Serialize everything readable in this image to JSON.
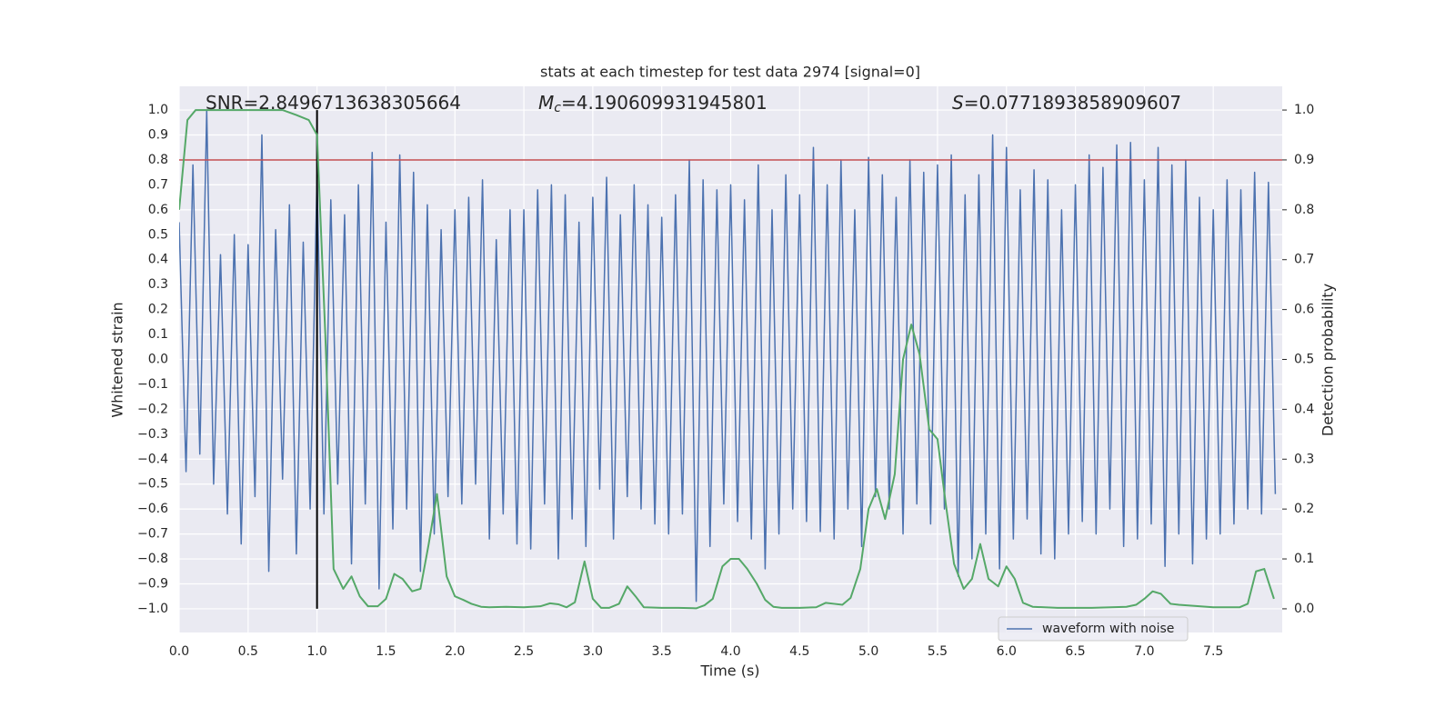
{
  "chart_data": {
    "type": "line",
    "title": "stats at each timestep for test data 2974 [signal=0]",
    "x_label": "Time (s)",
    "y_label": "Whitened strain",
    "y2_label": "Detection probability",
    "annotations": [
      {
        "text": "SNR=2.8496713638305664"
      },
      {
        "symbol": "M",
        "subscript": "c",
        "text": "=4.190609931945801"
      },
      {
        "symbol": "S",
        "text": "=0.0771893858909607"
      }
    ],
    "xlim": [
      0,
      8
    ],
    "ylim": [
      -1.095,
      1.095
    ],
    "y2lim": [
      -0.0475,
      1.0475
    ],
    "xticks": [
      {
        "value": 0,
        "label": "0.0"
      },
      {
        "value": 0.5,
        "label": "0.5"
      },
      {
        "value": 1,
        "label": "1.0"
      },
      {
        "value": 1.5,
        "label": "1.5"
      },
      {
        "value": 2,
        "label": "2.0"
      },
      {
        "value": 2.5,
        "label": "2.5"
      },
      {
        "value": 3,
        "label": "3.0"
      },
      {
        "value": 3.5,
        "label": "3.5"
      },
      {
        "value": 4,
        "label": "4.0"
      },
      {
        "value": 4.5,
        "label": "4.5"
      },
      {
        "value": 5,
        "label": "5.0"
      },
      {
        "value": 5.5,
        "label": "5.5"
      },
      {
        "value": 6,
        "label": "6.0"
      },
      {
        "value": 6.5,
        "label": "6.5"
      },
      {
        "value": 7,
        "label": "7.0"
      },
      {
        "value": 7.5,
        "label": "7.5"
      }
    ],
    "yticks": [
      {
        "value": -1,
        "label": "−1.0"
      },
      {
        "value": -0.9,
        "label": "−0.9"
      },
      {
        "value": -0.8,
        "label": "−0.8"
      },
      {
        "value": -0.7,
        "label": "−0.7"
      },
      {
        "value": -0.6,
        "label": "−0.6"
      },
      {
        "value": -0.5,
        "label": "−0.5"
      },
      {
        "value": -0.4,
        "label": "−0.4"
      },
      {
        "value": -0.3,
        "label": "−0.3"
      },
      {
        "value": -0.2,
        "label": "−0.2"
      },
      {
        "value": -0.1,
        "label": "−0.1"
      },
      {
        "value": 0,
        "label": "0.0"
      },
      {
        "value": 0.1,
        "label": "0.1"
      },
      {
        "value": 0.2,
        "label": "0.2"
      },
      {
        "value": 0.3,
        "label": "0.3"
      },
      {
        "value": 0.4,
        "label": "0.4"
      },
      {
        "value": 0.5,
        "label": "0.5"
      },
      {
        "value": 0.6,
        "label": "0.6"
      },
      {
        "value": 0.7,
        "label": "0.7"
      },
      {
        "value": 0.8,
        "label": "0.8"
      },
      {
        "value": 0.9,
        "label": "0.9"
      },
      {
        "value": 1,
        "label": "1.0"
      }
    ],
    "y2ticks": [
      {
        "value": 0,
        "label": "0.0"
      },
      {
        "value": 0.1,
        "label": "0.1"
      },
      {
        "value": 0.2,
        "label": "0.2"
      },
      {
        "value": 0.3,
        "label": "0.3"
      },
      {
        "value": 0.4,
        "label": "0.4"
      },
      {
        "value": 0.5,
        "label": "0.5"
      },
      {
        "value": 0.6,
        "label": "0.6"
      },
      {
        "value": 0.7,
        "label": "0.7"
      },
      {
        "value": 0.8,
        "label": "0.8"
      },
      {
        "value": 0.9,
        "label": "0.9"
      },
      {
        "value": 1,
        "label": "1.0"
      }
    ],
    "grid": true,
    "legend": "lower right",
    "threshold": {
      "value": 0.8,
      "color": "#c44e52"
    },
    "marker_line": {
      "x": 1,
      "ymin": -1,
      "ymax": 1,
      "color": "#000000"
    },
    "series": [
      {
        "name": "waveform with noise",
        "color": "#4c72b0",
        "x": [
          0,
          0.05,
          0.1,
          0.15,
          0.2,
          0.25,
          0.3,
          0.35,
          0.4,
          0.45,
          0.5,
          0.55,
          0.6,
          0.65,
          0.7,
          0.75,
          0.8,
          0.85,
          0.9,
          0.95,
          1,
          1.05,
          1.1,
          1.15,
          1.2,
          1.25,
          1.3,
          1.35,
          1.4,
          1.45,
          1.5,
          1.55,
          1.6,
          1.65,
          1.7,
          1.75,
          1.8,
          1.85,
          1.9,
          1.95,
          2,
          2.05,
          2.1,
          2.15,
          2.2,
          2.25,
          2.3,
          2.35,
          2.4,
          2.45,
          2.5,
          2.55,
          2.6,
          2.65,
          2.7,
          2.75,
          2.8,
          2.85,
          2.9,
          2.95,
          3,
          3.05,
          3.1,
          3.15,
          3.2,
          3.25,
          3.3,
          3.35,
          3.4,
          3.45,
          3.5,
          3.55,
          3.6,
          3.65,
          3.7,
          3.75,
          3.8,
          3.85,
          3.9,
          3.95,
          4,
          4.05,
          4.1,
          4.15,
          4.2,
          4.25,
          4.3,
          4.35,
          4.4,
          4.45,
          4.5,
          4.55,
          4.6,
          4.65,
          4.7,
          4.75,
          4.8,
          4.85,
          4.9,
          4.95,
          5,
          5.05,
          5.1,
          5.15,
          5.2,
          5.25,
          5.3,
          5.35,
          5.4,
          5.45,
          5.5,
          5.55,
          5.6,
          5.65,
          5.7,
          5.75,
          5.8,
          5.85,
          5.9,
          5.95,
          6,
          6.05,
          6.1,
          6.15,
          6.2,
          6.25,
          6.3,
          6.35,
          6.4,
          6.45,
          6.5,
          6.55,
          6.6,
          6.65,
          6.7,
          6.75,
          6.8,
          6.85,
          6.9,
          6.95,
          7,
          7.05,
          7.1,
          7.15,
          7.2,
          7.25,
          7.3,
          7.35,
          7.4,
          7.45,
          7.5,
          7.55,
          7.6,
          7.65,
          7.7,
          7.75,
          7.8,
          7.85,
          7.9,
          7.95
        ],
        "values": [
          0.55,
          -0.45,
          0.78,
          -0.38,
          1.0,
          -0.5,
          0.42,
          -0.62,
          0.5,
          -0.74,
          0.46,
          -0.55,
          0.9,
          -0.85,
          0.52,
          -0.48,
          0.62,
          -0.78,
          0.47,
          -0.6,
          0.74,
          -0.62,
          0.64,
          -0.5,
          0.58,
          -0.82,
          0.7,
          -0.58,
          0.83,
          -0.92,
          0.55,
          -0.68,
          0.82,
          -0.6,
          0.75,
          -0.85,
          0.62,
          -0.7,
          0.52,
          -0.55,
          0.6,
          -0.58,
          0.65,
          -0.5,
          0.72,
          -0.72,
          0.48,
          -0.62,
          0.6,
          -0.74,
          0.6,
          -0.76,
          0.68,
          -0.58,
          0.7,
          -0.8,
          0.66,
          -0.64,
          0.55,
          -0.75,
          0.65,
          -0.52,
          0.73,
          -0.72,
          0.58,
          -0.55,
          0.7,
          -0.6,
          0.62,
          -0.66,
          0.57,
          -0.7,
          0.66,
          -0.62,
          0.8,
          -0.97,
          0.72,
          -0.75,
          0.68,
          -0.58,
          0.7,
          -0.65,
          0.64,
          -0.72,
          0.78,
          -0.84,
          0.6,
          -0.7,
          0.74,
          -0.6,
          0.66,
          -0.65,
          0.85,
          -0.69,
          0.7,
          -0.72,
          0.8,
          -0.6,
          0.6,
          -0.75,
          0.81,
          -0.55,
          0.74,
          -0.6,
          0.65,
          -0.7,
          0.8,
          -0.58,
          0.75,
          -0.66,
          0.78,
          -0.6,
          0.82,
          -0.87,
          0.66,
          -0.8,
          0.74,
          -0.7,
          0.9,
          -0.84,
          0.85,
          -0.72,
          0.68,
          -0.64,
          0.76,
          -0.78,
          0.72,
          -0.8,
          0.6,
          -0.7,
          0.7,
          -0.65,
          0.82,
          -0.7,
          0.77,
          -0.6,
          0.86,
          -0.75,
          0.87,
          -0.72,
          0.72,
          -0.66,
          0.85,
          -0.83,
          0.78,
          -0.7,
          0.8,
          -0.82,
          0.65,
          -0.72,
          0.6,
          -0.7,
          0.72,
          -0.66,
          0.68,
          -0.6,
          0.75,
          -0.62,
          0.71,
          -0.54
        ]
      },
      {
        "color": "#55a868",
        "axis": "y2",
        "x": [
          0,
          0.06,
          0.12,
          0.5,
          0.75,
          0.85,
          0.94,
          1,
          1.06,
          1.12,
          1.19,
          1.25,
          1.31,
          1.37,
          1.44,
          1.5,
          1.56,
          1.62,
          1.69,
          1.75,
          1.81,
          1.87,
          1.94,
          2,
          2.06,
          2.12,
          2.19,
          2.25,
          2.37,
          2.5,
          2.62,
          2.69,
          2.75,
          2.81,
          2.87,
          2.94,
          3,
          3.06,
          3.12,
          3.19,
          3.25,
          3.31,
          3.37,
          3.5,
          3.62,
          3.75,
          3.81,
          3.87,
          3.94,
          4,
          4.06,
          4.12,
          4.19,
          4.25,
          4.31,
          4.37,
          4.5,
          4.62,
          4.69,
          4.75,
          4.81,
          4.87,
          4.94,
          5,
          5.06,
          5.12,
          5.19,
          5.25,
          5.31,
          5.37,
          5.44,
          5.5,
          5.56,
          5.62,
          5.69,
          5.75,
          5.81,
          5.87,
          5.94,
          6,
          6.06,
          6.12,
          6.19,
          6.37,
          6.62,
          6.87,
          6.94,
          7,
          7.06,
          7.12,
          7.19,
          7.25,
          7.5,
          7.69,
          7.75,
          7.81,
          7.87,
          7.94
        ],
        "values": [
          0.8,
          0.98,
          1.0,
          1.0,
          1.0,
          0.99,
          0.98,
          0.95,
          0.55,
          0.08,
          0.04,
          0.065,
          0.025,
          0.005,
          0.005,
          0.02,
          0.07,
          0.06,
          0.035,
          0.04,
          0.13,
          0.23,
          0.065,
          0.025,
          0.018,
          0.01,
          0.004,
          0.003,
          0.004,
          0.003,
          0.005,
          0.011,
          0.009,
          0.003,
          0.013,
          0.095,
          0.02,
          0.002,
          0.002,
          0.01,
          0.045,
          0.025,
          0.003,
          0.002,
          0.002,
          0.001,
          0.007,
          0.02,
          0.085,
          0.1,
          0.1,
          0.08,
          0.05,
          0.018,
          0.004,
          0.002,
          0.002,
          0.003,
          0.012,
          0.01,
          0.008,
          0.022,
          0.08,
          0.2,
          0.24,
          0.18,
          0.27,
          0.5,
          0.57,
          0.51,
          0.36,
          0.34,
          0.21,
          0.09,
          0.04,
          0.06,
          0.13,
          0.06,
          0.045,
          0.085,
          0.06,
          0.012,
          0.004,
          0.002,
          0.002,
          0.004,
          0.008,
          0.02,
          0.035,
          0.03,
          0.01,
          0.008,
          0.003,
          0.003,
          0.01,
          0.075,
          0.08,
          0.02
        ]
      }
    ]
  }
}
